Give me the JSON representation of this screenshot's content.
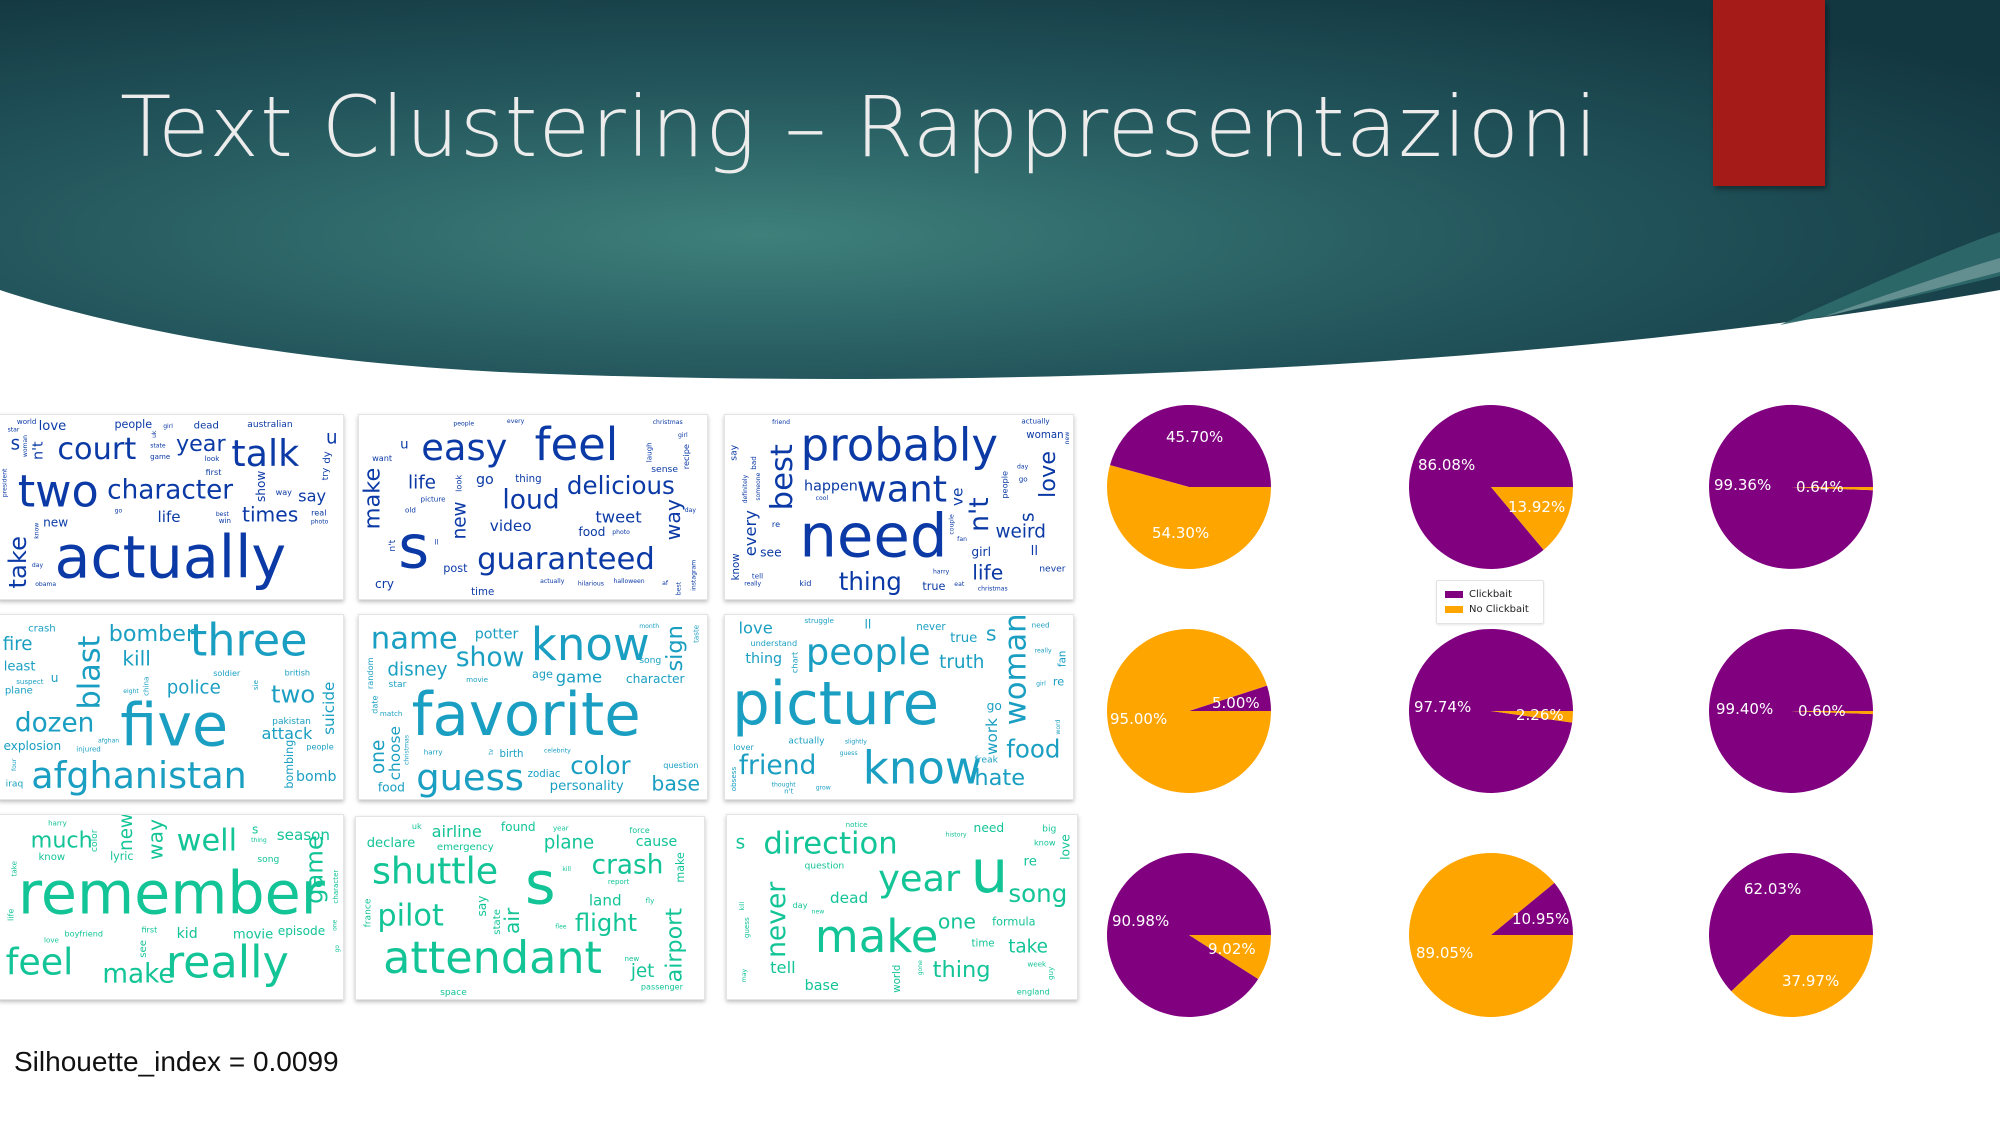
{
  "slide": {
    "title": "Text Clustering – Rappresentazioni",
    "footer": "Silhouette_index = 0.0099"
  },
  "colors": {
    "clickbait": "#800080",
    "no_clickbait": "#ffa500",
    "title_text": "#ececec",
    "accent": "#a51b18",
    "header_dark": "#163c45",
    "header_light": "#3d7f7a"
  },
  "legend": {
    "items": [
      {
        "label": "Clickbait",
        "color": "#800080"
      },
      {
        "label": "No Clickbait",
        "color": "#ffa500"
      }
    ]
  },
  "wordclouds": [
    {
      "color": "#0b3aa6",
      "words": [
        "actually",
        "two",
        "talk",
        "court",
        "character",
        "take",
        "year",
        "times",
        "s",
        "u",
        "say",
        "life",
        "n't",
        "love",
        "show",
        "new",
        "people",
        "dy",
        "dead",
        "australian",
        "try",
        "first",
        "way",
        "real",
        "world",
        "look",
        "game",
        "win",
        "uk",
        "best",
        "woman",
        "state",
        "star",
        "president",
        "obama",
        "go",
        "day",
        "know",
        "girl",
        "photo"
      ]
    },
    {
      "color": "#0b3aa6",
      "words": [
        "s",
        "feel",
        "easy",
        "guaranteed",
        "loud",
        "delicious",
        "make",
        "way",
        "life",
        "new",
        "tweet",
        "video",
        "go",
        "u",
        "cry",
        "food",
        "post",
        "thing",
        "time",
        "n't",
        "sense",
        "look",
        "recipe",
        "want",
        "ll",
        "old",
        "picture",
        "laugh",
        "every",
        "hilarious",
        "photo",
        "people",
        "af",
        "actually",
        "day",
        "girl",
        "halloween",
        "christmas",
        "instagram",
        "best"
      ]
    },
    {
      "color": "#0b3aa6",
      "words": [
        "need",
        "probably",
        "want",
        "best",
        "n't",
        "thing",
        "love",
        "life",
        "weird",
        "s",
        "every",
        "ve",
        "happen",
        "ll",
        "see",
        "girl",
        "true",
        "woman",
        "know",
        "never",
        "say",
        "people",
        "kid",
        "re",
        "actually",
        "bad",
        "go",
        "tell",
        "couple",
        "harry",
        "friend",
        "cool",
        "really",
        "definitely",
        "christmas",
        "fan",
        "new",
        "eat",
        "someone",
        "day"
      ]
    },
    {
      "color": "#1a9fc2",
      "words": [
        "five",
        "three",
        "afghanistan",
        "blast",
        "dozen",
        "two",
        "bomber",
        "kill",
        "police",
        "fire",
        "attack",
        "suicide",
        "bomb",
        "least",
        "explosion",
        "u",
        "bombing",
        "plane",
        "crash",
        "pakistan",
        "iraq",
        "soldier",
        "people",
        "british",
        "injured",
        "china",
        "suspect",
        "sie",
        "four",
        "afghan",
        "eight"
      ]
    },
    {
      "color": "#1a9fc2",
      "words": [
        "favorite",
        "know",
        "guess",
        "name",
        "show",
        "color",
        "sign",
        "base",
        "disney",
        "one",
        "game",
        "choose",
        "potter",
        "personality",
        "character",
        "food",
        "age",
        "birth",
        "zodiac",
        "song",
        "star",
        "random",
        "date",
        "question",
        "taste",
        "match",
        "movie",
        "harry",
        "celebrity",
        "month",
        "tv",
        "christmas"
      ]
    },
    {
      "color": "#1a9fc2",
      "words": [
        "picture",
        "know",
        "people",
        "woman",
        "friend",
        "food",
        "hate",
        "s",
        "everyone",
        "truth",
        "love",
        "work",
        "thing",
        "true",
        "ll",
        "go",
        "re",
        "never",
        "fan",
        "actually",
        "freak",
        "understand",
        "chart",
        "lover",
        "struggle",
        "need",
        "obsess",
        "n't",
        "girl",
        "word",
        "slightly",
        "thought",
        "really",
        "grow",
        "guess"
      ]
    },
    {
      "color": "#13c497",
      "words": [
        "remember",
        "really",
        "feel",
        "well",
        "make",
        "game",
        "much",
        "way",
        "people",
        "new",
        "actually",
        "season",
        "kid",
        "movie",
        "s",
        "episode",
        "lyric",
        "see",
        "know",
        "color",
        "song",
        "life",
        "first",
        "boyfriend",
        "character",
        "love",
        "harry",
        "take",
        "thing",
        "one",
        "go"
      ]
    },
    {
      "color": "#13c497",
      "words": [
        "s",
        "attendant",
        "shuttle",
        "pilot",
        "crash",
        "flight",
        "airport",
        "air",
        "jet",
        "plane",
        "airline",
        "land",
        "cause",
        "declare",
        "say",
        "found",
        "make",
        "emergency",
        "state",
        "space",
        "france",
        "passenger",
        "force",
        "uk",
        "report",
        "year",
        "fly",
        "new",
        "kill",
        "flee"
      ]
    },
    {
      "color": "#13c497",
      "words": [
        "u",
        "make",
        "year",
        "direction",
        "never",
        "song",
        "thing",
        "one",
        "take",
        "s",
        "tell",
        "dead",
        "base",
        "re",
        "love",
        "need",
        "formula",
        "time",
        "world",
        "big",
        "question",
        "day",
        "know",
        "england",
        "guess",
        "guy",
        "notice",
        "week",
        "new",
        "kill",
        "history",
        "may",
        "gone"
      ]
    }
  ],
  "chart_data": [
    {
      "type": "pie",
      "labels": [
        "Clickbait",
        "No Clickbait"
      ],
      "values": [
        45.7,
        54.3
      ],
      "value_labels": [
        "45.70%",
        "54.30%"
      ]
    },
    {
      "type": "pie",
      "labels": [
        "Clickbait",
        "No Clickbait"
      ],
      "values": [
        86.08,
        13.92
      ],
      "value_labels": [
        "86.08%",
        "13.92%"
      ]
    },
    {
      "type": "pie",
      "labels": [
        "Clickbait",
        "No Clickbait"
      ],
      "values": [
        99.36,
        0.64
      ],
      "value_labels": [
        "99.36%",
        "0.64%"
      ]
    },
    {
      "type": "pie",
      "labels": [
        "Clickbait",
        "No Clickbait"
      ],
      "values": [
        5.0,
        95.0
      ],
      "value_labels": [
        "5.00%",
        "95.00%"
      ]
    },
    {
      "type": "pie",
      "labels": [
        "Clickbait",
        "No Clickbait"
      ],
      "values": [
        97.74,
        2.26
      ],
      "value_labels": [
        "97.74%",
        "2.26%"
      ]
    },
    {
      "type": "pie",
      "labels": [
        "Clickbait",
        "No Clickbait"
      ],
      "values": [
        99.4,
        0.6
      ],
      "value_labels": [
        "99.40%",
        "0.60%"
      ]
    },
    {
      "type": "pie",
      "labels": [
        "Clickbait",
        "No Clickbait"
      ],
      "values": [
        90.98,
        9.02
      ],
      "value_labels": [
        "90.98%",
        "9.02%"
      ]
    },
    {
      "type": "pie",
      "labels": [
        "Clickbait",
        "No Clickbait"
      ],
      "values": [
        10.95,
        89.05
      ],
      "value_labels": [
        "10.95%",
        "89.05%"
      ]
    },
    {
      "type": "pie",
      "labels": [
        "Clickbait",
        "No Clickbait"
      ],
      "values": [
        62.03,
        37.97
      ],
      "value_labels": [
        "62.03%",
        "37.97%"
      ]
    }
  ]
}
